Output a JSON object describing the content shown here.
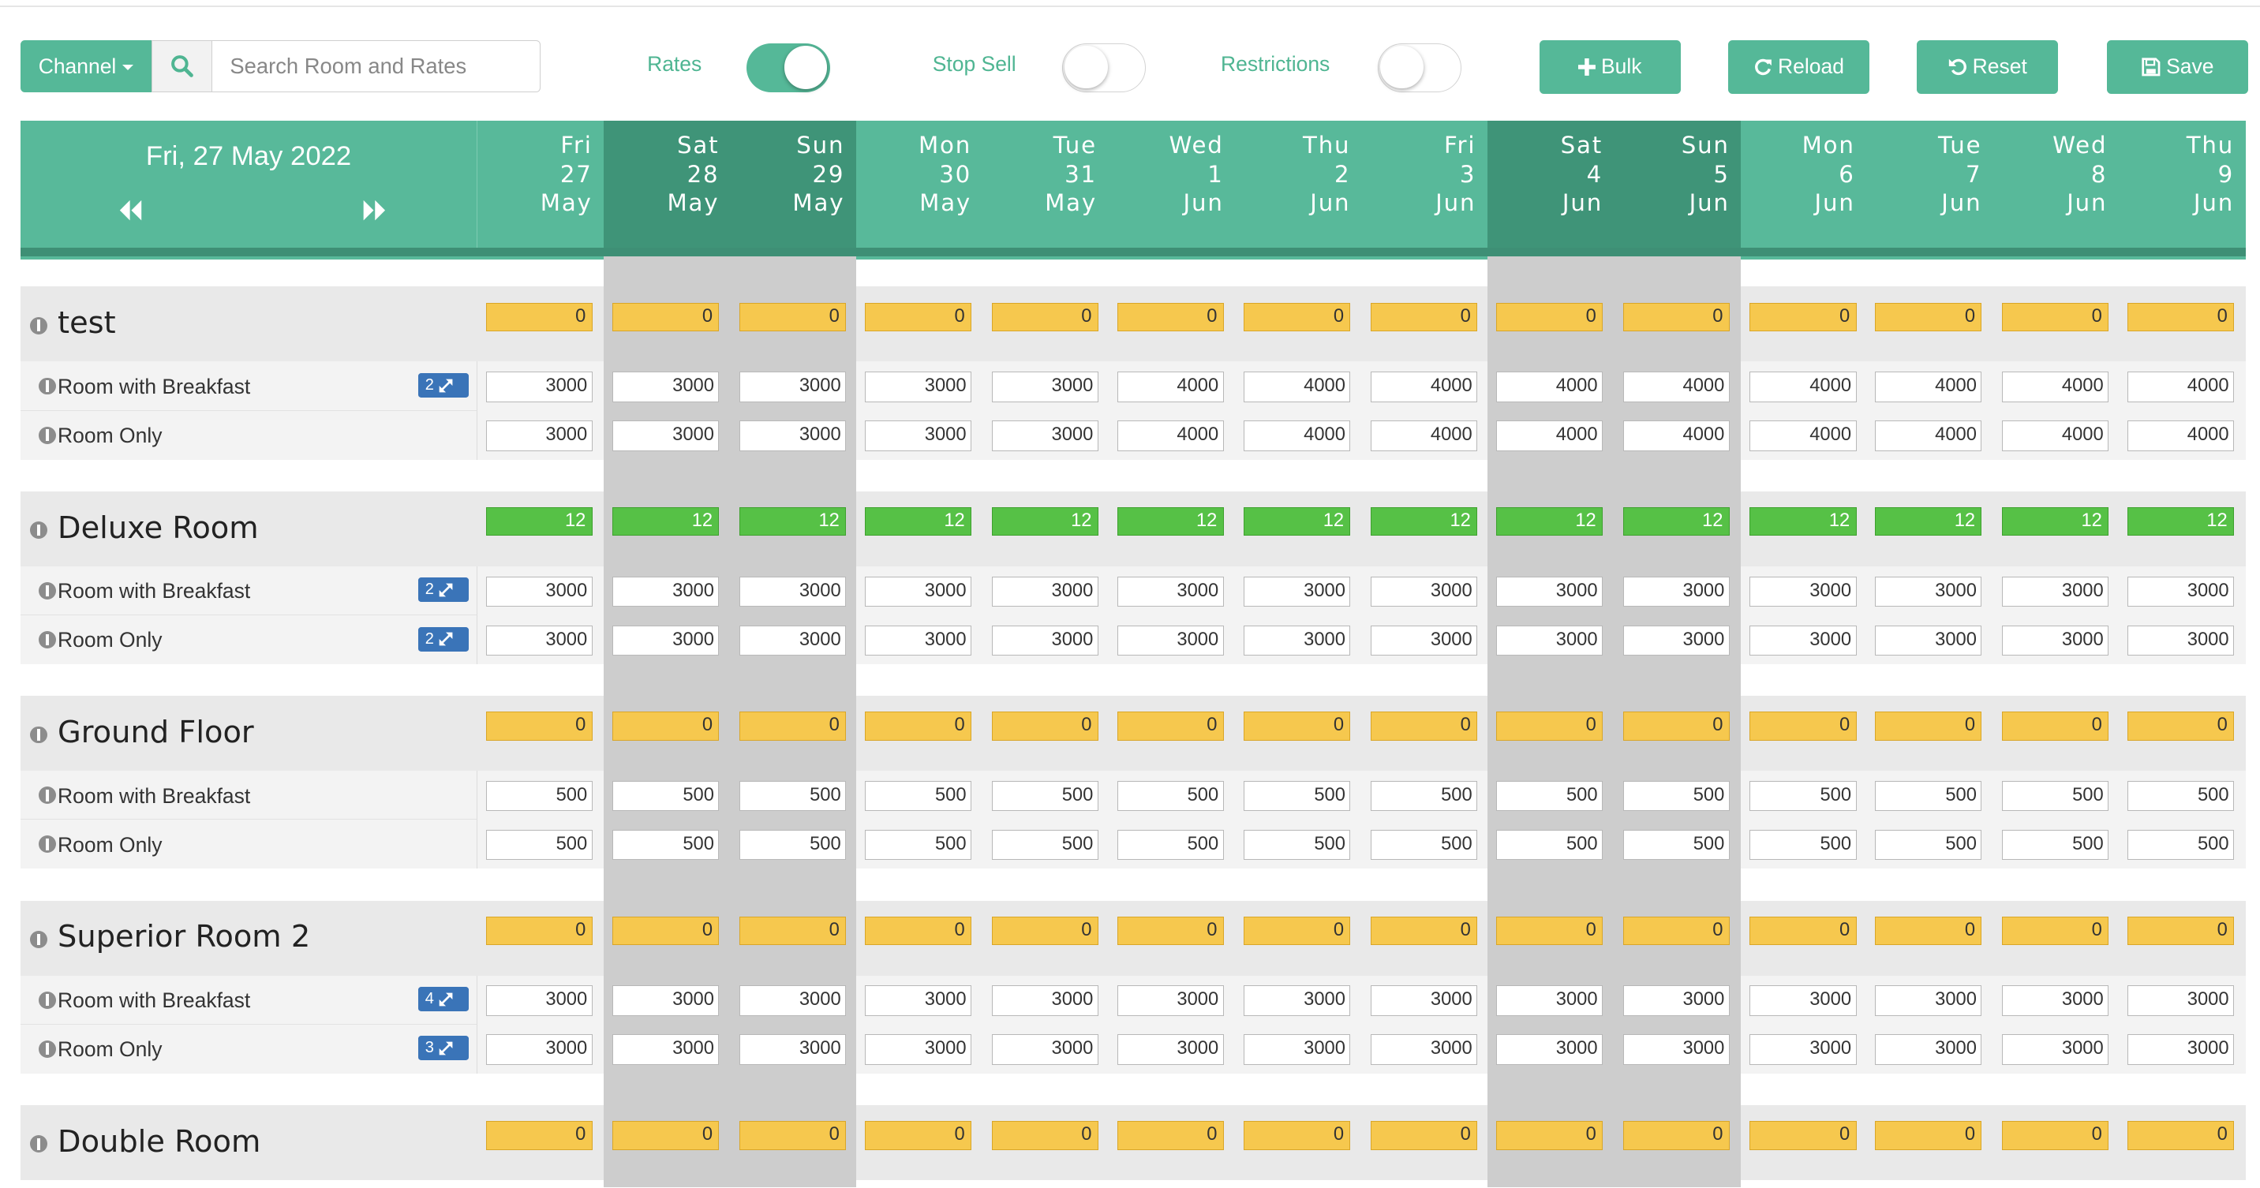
{
  "toolbar": {
    "channel_label": "Channel",
    "search_placeholder": "Search Room and Rates",
    "rates_label": "Rates",
    "rates_on": true,
    "stop_sell_label": "Stop Sell",
    "stop_sell_on": false,
    "restrictions_label": "Restrictions",
    "restrictions_on": false,
    "bulk_label": "Bulk",
    "reload_label": "Reload",
    "reset_label": "Reset",
    "save_label": "Save"
  },
  "header": {
    "current_date": "Fri, 27 May 2022",
    "days": [
      {
        "dow": "Fri",
        "day": "27",
        "month": "May",
        "weekend": false
      },
      {
        "dow": "Sat",
        "day": "28",
        "month": "May",
        "weekend": true
      },
      {
        "dow": "Sun",
        "day": "29",
        "month": "May",
        "weekend": true
      },
      {
        "dow": "Mon",
        "day": "30",
        "month": "May",
        "weekend": false
      },
      {
        "dow": "Tue",
        "day": "31",
        "month": "May",
        "weekend": false
      },
      {
        "dow": "Wed",
        "day": "1",
        "month": "Jun",
        "weekend": false
      },
      {
        "dow": "Thu",
        "day": "2",
        "month": "Jun",
        "weekend": false
      },
      {
        "dow": "Fri",
        "day": "3",
        "month": "Jun",
        "weekend": false
      },
      {
        "dow": "Sat",
        "day": "4",
        "month": "Jun",
        "weekend": true
      },
      {
        "dow": "Sun",
        "day": "5",
        "month": "Jun",
        "weekend": true
      },
      {
        "dow": "Mon",
        "day": "6",
        "month": "Jun",
        "weekend": false
      },
      {
        "dow": "Tue",
        "day": "7",
        "month": "Jun",
        "weekend": false
      },
      {
        "dow": "Wed",
        "day": "8",
        "month": "Jun",
        "weekend": false
      },
      {
        "dow": "Thu",
        "day": "9",
        "month": "Jun",
        "weekend": false
      }
    ]
  },
  "colors": {
    "accent": "#55b898",
    "weekend_header": "#3f9478",
    "availability_zero": "#f6c84e",
    "availability_positive": "#56c146",
    "badge": "#3a74b8"
  },
  "rooms": [
    {
      "name": "test",
      "availability": [
        "0",
        "0",
        "0",
        "0",
        "0",
        "0",
        "0",
        "0",
        "0",
        "0",
        "0",
        "0",
        "0",
        "0"
      ],
      "rates": [
        {
          "name": "Room with Breakfast",
          "badge": "2",
          "values": [
            "3000",
            "3000",
            "3000",
            "3000",
            "3000",
            "4000",
            "4000",
            "4000",
            "4000",
            "4000",
            "4000",
            "4000",
            "4000",
            "4000"
          ]
        },
        {
          "name": "Room Only",
          "badge": null,
          "values": [
            "3000",
            "3000",
            "3000",
            "3000",
            "3000",
            "4000",
            "4000",
            "4000",
            "4000",
            "4000",
            "4000",
            "4000",
            "4000",
            "4000"
          ]
        }
      ]
    },
    {
      "name": "Deluxe Room",
      "availability": [
        "12",
        "12",
        "12",
        "12",
        "12",
        "12",
        "12",
        "12",
        "12",
        "12",
        "12",
        "12",
        "12",
        "12"
      ],
      "rates": [
        {
          "name": "Room with Breakfast",
          "badge": "2",
          "values": [
            "3000",
            "3000",
            "3000",
            "3000",
            "3000",
            "3000",
            "3000",
            "3000",
            "3000",
            "3000",
            "3000",
            "3000",
            "3000",
            "3000"
          ]
        },
        {
          "name": "Room Only",
          "badge": "2",
          "values": [
            "3000",
            "3000",
            "3000",
            "3000",
            "3000",
            "3000",
            "3000",
            "3000",
            "3000",
            "3000",
            "3000",
            "3000",
            "3000",
            "3000"
          ]
        }
      ]
    },
    {
      "name": "Ground Floor",
      "availability": [
        "0",
        "0",
        "0",
        "0",
        "0",
        "0",
        "0",
        "0",
        "0",
        "0",
        "0",
        "0",
        "0",
        "0"
      ],
      "rates": [
        {
          "name": "Room with Breakfast",
          "badge": null,
          "values": [
            "500",
            "500",
            "500",
            "500",
            "500",
            "500",
            "500",
            "500",
            "500",
            "500",
            "500",
            "500",
            "500",
            "500"
          ]
        },
        {
          "name": "Room Only",
          "badge": null,
          "values": [
            "500",
            "500",
            "500",
            "500",
            "500",
            "500",
            "500",
            "500",
            "500",
            "500",
            "500",
            "500",
            "500",
            "500"
          ]
        }
      ]
    },
    {
      "name": "Superior Room 2",
      "availability": [
        "0",
        "0",
        "0",
        "0",
        "0",
        "0",
        "0",
        "0",
        "0",
        "0",
        "0",
        "0",
        "0",
        "0"
      ],
      "rates": [
        {
          "name": "Room with Breakfast",
          "badge": "4",
          "values": [
            "3000",
            "3000",
            "3000",
            "3000",
            "3000",
            "3000",
            "3000",
            "3000",
            "3000",
            "3000",
            "3000",
            "3000",
            "3000",
            "3000"
          ]
        },
        {
          "name": "Room Only",
          "badge": "3",
          "values": [
            "3000",
            "3000",
            "3000",
            "3000",
            "3000",
            "3000",
            "3000",
            "3000",
            "3000",
            "3000",
            "3000",
            "3000",
            "3000",
            "3000"
          ]
        }
      ]
    },
    {
      "name": "Double Room",
      "availability": [
        "0",
        "0",
        "0",
        "0",
        "0",
        "0",
        "0",
        "0",
        "0",
        "0",
        "0",
        "0",
        "0",
        "0"
      ],
      "rates": []
    }
  ]
}
